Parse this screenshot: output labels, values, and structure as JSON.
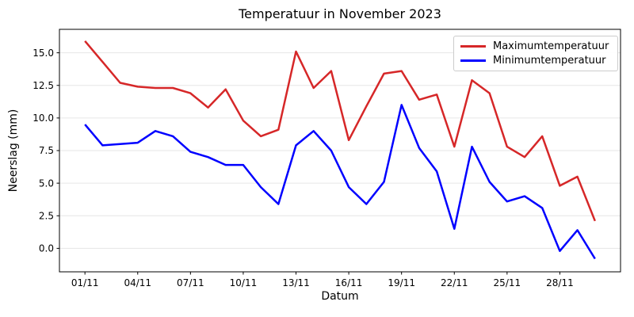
{
  "chart_data": {
    "type": "line",
    "title": "Temperatuur in November 2023",
    "xlabel": "Datum",
    "ylabel": "Neerslag (mm)",
    "categories": [
      "01/11",
      "02/11",
      "03/11",
      "04/11",
      "05/11",
      "06/11",
      "07/11",
      "08/11",
      "09/11",
      "10/11",
      "11/11",
      "12/11",
      "13/11",
      "14/11",
      "15/11",
      "16/11",
      "17/11",
      "18/11",
      "19/11",
      "20/11",
      "21/11",
      "22/11",
      "23/11",
      "24/11",
      "25/11",
      "26/11",
      "27/11",
      "28/11",
      "29/11",
      "30/11"
    ],
    "x_tick_indices": [
      0,
      3,
      6,
      9,
      12,
      15,
      18,
      21,
      24,
      27
    ],
    "x_tick_labels": [
      "01/11",
      "04/11",
      "07/11",
      "10/11",
      "13/11",
      "16/11",
      "19/11",
      "22/11",
      "25/11",
      "28/11"
    ],
    "yticks": [
      0.0,
      2.5,
      5.0,
      7.5,
      10.0,
      12.5,
      15.0
    ],
    "ylim": [
      -1.8,
      16.8
    ],
    "grid": "horizontal",
    "legend_position": "upper right",
    "series": [
      {
        "name": "Maximumtemperatuur",
        "color": "#d62728",
        "values": [
          15.9,
          14.3,
          12.7,
          12.4,
          12.3,
          12.3,
          11.9,
          10.8,
          12.2,
          9.8,
          8.6,
          9.1,
          15.1,
          12.3,
          13.6,
          8.3,
          10.9,
          13.4,
          13.6,
          11.4,
          11.8,
          7.8,
          12.9,
          11.9,
          7.8,
          7.0,
          8.6,
          4.8,
          5.5,
          2.1
        ]
      },
      {
        "name": "Minimumtemperatuur",
        "color": "#0000ff",
        "values": [
          9.5,
          7.9,
          8.0,
          8.1,
          9.0,
          8.6,
          7.4,
          7.0,
          6.4,
          6.4,
          4.7,
          3.4,
          7.9,
          9.0,
          7.5,
          4.7,
          3.4,
          5.1,
          11.0,
          7.7,
          5.9,
          1.5,
          7.8,
          5.1,
          3.6,
          4.0,
          3.1,
          -0.2,
          1.4,
          -0.8
        ]
      }
    ]
  }
}
